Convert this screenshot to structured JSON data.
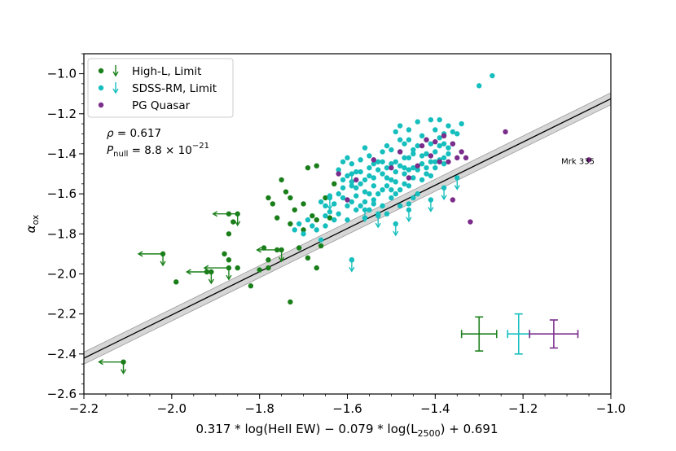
{
  "chart_data": {
    "type": "scatter",
    "xlabel": {
      "pre": "0.317 * log(HeII EW) − 0.079 * log(L",
      "sub": "2500",
      "post": ") + 0.691"
    },
    "ylabel": {
      "main": "α",
      "sub": "ox"
    },
    "xlim": [
      -2.2,
      -1.0
    ],
    "ylim": [
      -2.6,
      -0.9
    ],
    "xticks": [
      -2.2,
      -2.0,
      -1.8,
      -1.6,
      -1.4,
      -1.2,
      -1.0
    ],
    "xtick_labels": [
      "−2.2",
      "−2.0",
      "−1.8",
      "−1.6",
      "−1.4",
      "−1.2",
      "−1.0"
    ],
    "yticks": [
      -2.6,
      -2.4,
      -2.2,
      -2.0,
      -1.8,
      -1.6,
      -1.4,
      -1.2,
      -1.0
    ],
    "ytick_labels": [
      "−2.6",
      "−2.4",
      "−2.2",
      "−2.0",
      "−1.8",
      "−1.6",
      "−1.4",
      "−1.2",
      "−1.0"
    ],
    "grid": false,
    "legend_position": "top-left",
    "legend": [
      {
        "label": "High-L, Limit",
        "color": "#1a7f1a",
        "marker": "dot+arrow"
      },
      {
        "label": "SDSS-RM, Limit",
        "color": "#17bebe",
        "marker": "dot+arrow"
      },
      {
        "label": "PG Quasar",
        "color": "#7b2d8b",
        "marker": "dot"
      }
    ],
    "stats": {
      "rho_symbol": "ρ",
      "rho_text": " = 0.617",
      "pnull_symbol": "P",
      "pnull_sub": "null",
      "pnull_text": " = 8.8 × 10",
      "pnull_exp": "−21"
    },
    "fit_line": {
      "slope": 1.08,
      "intercept": -0.045,
      "band_halfwidth": 0.03
    },
    "annotations": [
      {
        "text": "Mrk 335",
        "x": -1.075,
        "y": -1.37
      }
    ],
    "series": [
      {
        "name": "High-L",
        "color": "#1a7f1a",
        "points": [
          [
            -1.87,
            -1.7
          ],
          [
            -1.86,
            -1.74
          ],
          [
            -1.87,
            -1.8
          ],
          [
            -1.88,
            -1.9
          ],
          [
            -1.87,
            -1.93
          ],
          [
            -1.85,
            -1.97
          ],
          [
            -1.82,
            -2.06
          ],
          [
            -1.8,
            -1.98
          ],
          [
            -1.79,
            -1.87
          ],
          [
            -1.78,
            -1.93
          ],
          [
            -1.78,
            -1.97
          ],
          [
            -1.77,
            -1.65
          ],
          [
            -1.78,
            -1.62
          ],
          [
            -1.76,
            -1.72
          ],
          [
            -1.75,
            -1.53
          ],
          [
            -1.74,
            -1.59
          ],
          [
            -1.73,
            -1.62
          ],
          [
            -1.73,
            -1.75
          ],
          [
            -1.72,
            -1.68
          ],
          [
            -1.71,
            -1.87
          ],
          [
            -1.7,
            -1.78
          ],
          [
            -1.7,
            -1.65
          ],
          [
            -1.69,
            -1.47
          ],
          [
            -1.69,
            -1.92
          ],
          [
            -1.68,
            -1.71
          ],
          [
            -1.67,
            -1.46
          ],
          [
            -1.67,
            -1.73
          ],
          [
            -1.67,
            -1.97
          ],
          [
            -1.66,
            -1.86
          ],
          [
            -1.65,
            -1.62
          ],
          [
            -1.64,
            -1.72
          ],
          [
            -1.63,
            -1.55
          ],
          [
            -1.73,
            -2.14
          ],
          [
            -1.99,
            -2.04
          ],
          [
            -1.92,
            -1.99
          ],
          [
            -1.76,
            -1.88
          ]
        ],
        "limits": [
          [
            -2.02,
            -1.9
          ],
          [
            -1.85,
            -1.7
          ],
          [
            -1.91,
            -1.99
          ],
          [
            -1.87,
            -1.97
          ],
          [
            -1.75,
            -1.88
          ],
          [
            -2.11,
            -2.44
          ]
        ]
      },
      {
        "name": "SDSS-RM",
        "color": "#17bebe",
        "points": [
          [
            -1.66,
            -1.83
          ],
          [
            -1.65,
            -1.76
          ],
          [
            -1.65,
            -1.66
          ],
          [
            -1.64,
            -1.61
          ],
          [
            -1.62,
            -1.6
          ],
          [
            -1.63,
            -1.73
          ],
          [
            -1.61,
            -1.62
          ],
          [
            -1.61,
            -1.53
          ],
          [
            -1.6,
            -1.66
          ],
          [
            -1.6,
            -1.73
          ],
          [
            -1.59,
            -1.64
          ],
          [
            -1.59,
            -1.54
          ],
          [
            -1.58,
            -1.57
          ],
          [
            -1.58,
            -1.68
          ],
          [
            -1.57,
            -1.49
          ],
          [
            -1.57,
            -1.43
          ],
          [
            -1.56,
            -1.59
          ],
          [
            -1.56,
            -1.72
          ],
          [
            -1.55,
            -1.51
          ],
          [
            -1.55,
            -1.41
          ],
          [
            -1.54,
            -1.63
          ],
          [
            -1.54,
            -1.56
          ],
          [
            -1.53,
            -1.48
          ],
          [
            -1.53,
            -1.7
          ],
          [
            -1.52,
            -1.44
          ],
          [
            -1.52,
            -1.58
          ],
          [
            -1.51,
            -1.36
          ],
          [
            -1.51,
            -1.52
          ],
          [
            -1.5,
            -1.62
          ],
          [
            -1.5,
            -1.45
          ],
          [
            -1.49,
            -1.29
          ],
          [
            -1.49,
            -1.54
          ],
          [
            -1.48,
            -1.39
          ],
          [
            -1.48,
            -1.66
          ],
          [
            -1.47,
            -1.5
          ],
          [
            -1.47,
            -1.42
          ],
          [
            -1.46,
            -1.33
          ],
          [
            -1.46,
            -1.56
          ],
          [
            -1.45,
            -1.47
          ],
          [
            -1.45,
            -1.38
          ],
          [
            -1.44,
            -1.24
          ],
          [
            -1.44,
            -1.6
          ],
          [
            -1.43,
            -1.45
          ],
          [
            -1.43,
            -1.31
          ],
          [
            -1.42,
            -1.5
          ],
          [
            -1.42,
            -1.4
          ],
          [
            -1.41,
            -1.23
          ],
          [
            -1.41,
            -1.35
          ],
          [
            -1.4,
            -1.44
          ],
          [
            -1.4,
            -1.28
          ],
          [
            -1.39,
            -1.36
          ],
          [
            -1.39,
            -1.23
          ],
          [
            -1.38,
            -1.42
          ],
          [
            -1.38,
            -1.3
          ],
          [
            -1.37,
            -1.26
          ],
          [
            -1.36,
            -1.35
          ],
          [
            -1.35,
            -1.3
          ],
          [
            -1.34,
            -1.25
          ],
          [
            -1.52,
            -1.39
          ],
          [
            -1.51,
            -1.47
          ],
          [
            -1.5,
            -1.53
          ],
          [
            -1.49,
            -1.44
          ],
          [
            -1.48,
            -1.58
          ],
          [
            -1.47,
            -1.35
          ],
          [
            -1.46,
            -1.42
          ],
          [
            -1.45,
            -1.52
          ],
          [
            -1.54,
            -1.45
          ],
          [
            -1.55,
            -1.47
          ],
          [
            -1.56,
            -1.53
          ],
          [
            -1.57,
            -1.55
          ],
          [
            -1.58,
            -1.61
          ],
          [
            -1.59,
            -1.45
          ],
          [
            -1.6,
            -1.51
          ],
          [
            -1.61,
            -1.57
          ],
          [
            -1.62,
            -1.7
          ],
          [
            -1.63,
            -1.65
          ],
          [
            -1.64,
            -1.69
          ],
          [
            -1.65,
            -1.71
          ],
          [
            -1.66,
            -1.64
          ],
          [
            -1.67,
            -1.78
          ],
          [
            -1.68,
            -1.76
          ],
          [
            -1.69,
            -1.73
          ],
          [
            -1.7,
            -1.8
          ],
          [
            -1.71,
            -1.75
          ],
          [
            -1.72,
            -1.78
          ],
          [
            -1.53,
            -1.6
          ],
          [
            -1.52,
            -1.66
          ],
          [
            -1.51,
            -1.7
          ],
          [
            -1.5,
            -1.58
          ],
          [
            -1.49,
            -1.49
          ],
          [
            -1.48,
            -1.46
          ],
          [
            -1.47,
            -1.55
          ],
          [
            -1.46,
            -1.48
          ],
          [
            -1.45,
            -1.4
          ],
          [
            -1.44,
            -1.36
          ],
          [
            -1.43,
            -1.41
          ],
          [
            -1.42,
            -1.33
          ],
          [
            -1.41,
            -1.44
          ],
          [
            -1.4,
            -1.39
          ],
          [
            -1.39,
            -1.32
          ],
          [
            -1.38,
            -1.35
          ],
          [
            -1.37,
            -1.4
          ],
          [
            -1.36,
            -1.29
          ],
          [
            -1.56,
            -1.37
          ],
          [
            -1.55,
            -1.6
          ],
          [
            -1.54,
            -1.52
          ],
          [
            -1.53,
            -1.44
          ],
          [
            -1.52,
            -1.5
          ],
          [
            -1.51,
            -1.56
          ],
          [
            -1.5,
            -1.38
          ],
          [
            -1.49,
            -1.6
          ],
          [
            -1.48,
            -1.33
          ],
          [
            -1.47,
            -1.47
          ],
          [
            -1.58,
            -1.49
          ],
          [
            -1.59,
            -1.56
          ],
          [
            -1.6,
            -1.42
          ],
          [
            -1.57,
            -1.66
          ],
          [
            -1.56,
            -1.64
          ],
          [
            -1.55,
            -1.68
          ],
          [
            -1.54,
            -1.65
          ],
          [
            -1.62,
            -1.48
          ],
          [
            -1.61,
            -1.44
          ],
          [
            -1.44,
            -1.48
          ],
          [
            -1.43,
            -1.53
          ],
          [
            -1.42,
            -1.47
          ],
          [
            -1.41,
            -1.51
          ],
          [
            -1.46,
            -1.65
          ],
          [
            -1.45,
            -1.62
          ],
          [
            -1.4,
            -1.47
          ],
          [
            -1.39,
            -1.43
          ],
          [
            -1.38,
            -1.45
          ],
          [
            -1.37,
            -1.37
          ],
          [
            -1.46,
            -1.28
          ],
          [
            -1.48,
            -1.26
          ],
          [
            -1.3,
            -1.06
          ],
          [
            -1.27,
            -1.01
          ],
          [
            -1.59,
            -1.93
          ]
        ],
        "limits": [
          [
            -1.64,
            -1.62
          ],
          [
            -1.59,
            -1.5
          ],
          [
            -1.56,
            -1.68
          ],
          [
            -1.53,
            -1.71
          ],
          [
            -1.49,
            -1.75
          ],
          [
            -1.46,
            -1.68
          ],
          [
            -1.41,
            -1.63
          ],
          [
            -1.38,
            -1.57
          ],
          [
            -1.35,
            -1.52
          ],
          [
            -1.59,
            -1.93
          ]
        ]
      },
      {
        "name": "PG Quasar",
        "color": "#7b2d8b",
        "points": [
          [
            -1.62,
            -1.5
          ],
          [
            -1.58,
            -1.53
          ],
          [
            -1.54,
            -1.43
          ],
          [
            -1.5,
            -1.47
          ],
          [
            -1.48,
            -1.39
          ],
          [
            -1.46,
            -1.52
          ],
          [
            -1.44,
            -1.46
          ],
          [
            -1.43,
            -1.36
          ],
          [
            -1.42,
            -1.33
          ],
          [
            -1.41,
            -1.41
          ],
          [
            -1.4,
            -1.34
          ],
          [
            -1.39,
            -1.44
          ],
          [
            -1.38,
            -1.31
          ],
          [
            -1.37,
            -1.44
          ],
          [
            -1.36,
            -1.35
          ],
          [
            -1.35,
            -1.42
          ],
          [
            -1.34,
            -1.39
          ],
          [
            -1.36,
            -1.63
          ],
          [
            -1.33,
            -1.42
          ],
          [
            -1.32,
            -1.74
          ],
          [
            -1.24,
            -1.29
          ],
          [
            -1.05,
            -1.43
          ],
          [
            -1.6,
            -1.63
          ]
        ]
      }
    ],
    "error_bars": [
      {
        "name": "High-L",
        "color": "#1a7f1a",
        "x": -1.3,
        "y": -2.3,
        "xerr": 0.04,
        "yerr": 0.085
      },
      {
        "name": "SDSS-RM",
        "color": "#17bebe",
        "x": -1.21,
        "y": -2.3,
        "xerr": 0.025,
        "yerr": 0.1
      },
      {
        "name": "PG Quasar",
        "color": "#7b2d8b",
        "x": -1.13,
        "y": -2.3,
        "xerr": 0.055,
        "yerr": 0.07
      }
    ]
  }
}
